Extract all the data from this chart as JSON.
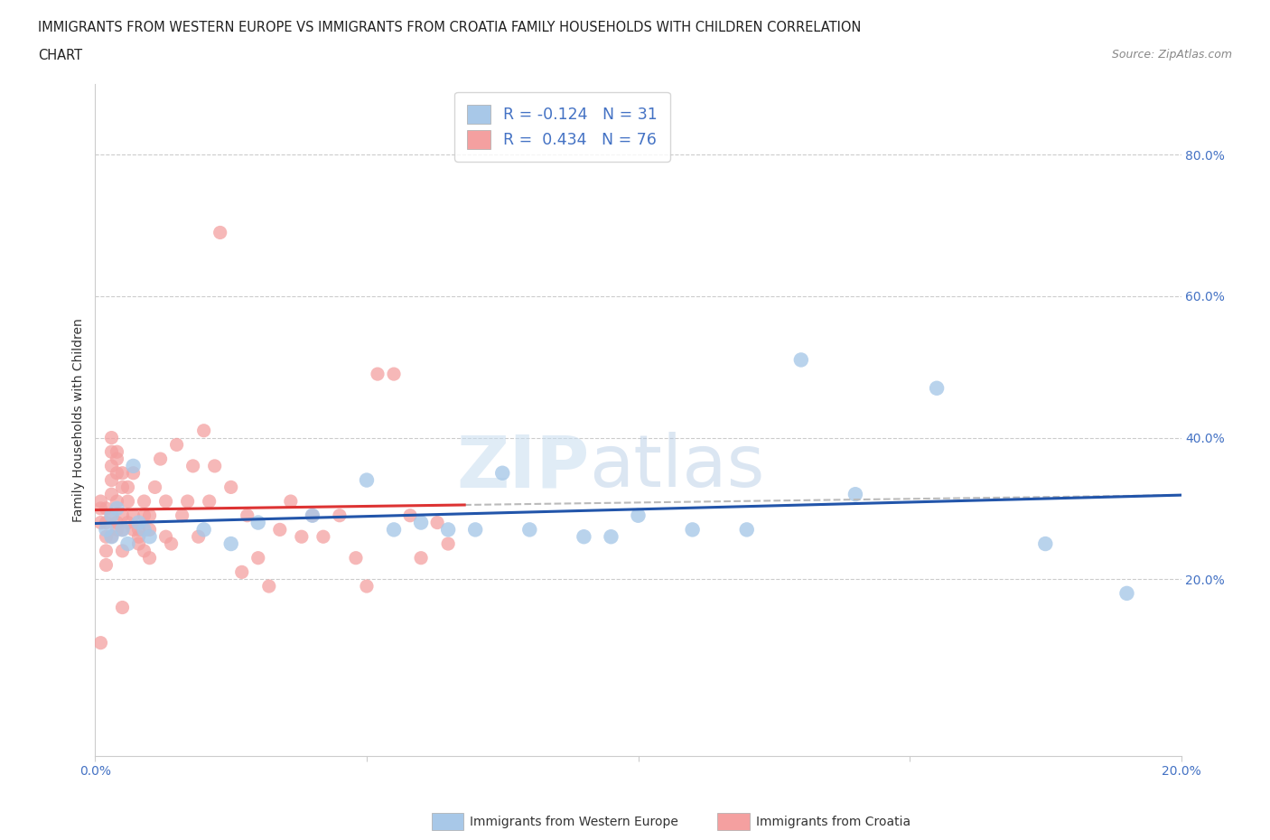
{
  "title_line1": "IMMIGRANTS FROM WESTERN EUROPE VS IMMIGRANTS FROM CROATIA FAMILY HOUSEHOLDS WITH CHILDREN CORRELATION",
  "title_line2": "CHART",
  "source_text": "Source: ZipAtlas.com",
  "ylabel": "Family Households with Children",
  "xlim": [
    0.0,
    0.2
  ],
  "ylim": [
    -0.05,
    0.9
  ],
  "xticks": [
    0.0,
    0.05,
    0.1,
    0.15,
    0.2
  ],
  "xticklabels": [
    "0.0%",
    "",
    "",
    "",
    "20.0%"
  ],
  "yticks_right": [
    0.2,
    0.4,
    0.6,
    0.8
  ],
  "ytick_right_labels": [
    "20.0%",
    "40.0%",
    "60.0%",
    "80.0%"
  ],
  "color_blue": "#a8c8e8",
  "color_pink": "#f4a0a0",
  "color_blue_line": "#2255aa",
  "color_pink_line": "#dd3333",
  "color_dashed_line": "#bbbbbb",
  "R_blue": -0.124,
  "N_blue": 31,
  "R_pink": 0.434,
  "N_pink": 76,
  "legend_label_blue": "Immigrants from Western Europe",
  "legend_label_pink": "Immigrants from Croatia",
  "blue_scatter_x": [
    0.002,
    0.003,
    0.003,
    0.004,
    0.005,
    0.006,
    0.007,
    0.008,
    0.009,
    0.01,
    0.02,
    0.025,
    0.03,
    0.04,
    0.05,
    0.055,
    0.06,
    0.065,
    0.07,
    0.075,
    0.08,
    0.09,
    0.095,
    0.1,
    0.11,
    0.12,
    0.13,
    0.14,
    0.155,
    0.175,
    0.19
  ],
  "blue_scatter_y": [
    0.27,
    0.29,
    0.26,
    0.3,
    0.27,
    0.25,
    0.36,
    0.28,
    0.27,
    0.26,
    0.27,
    0.25,
    0.28,
    0.29,
    0.34,
    0.27,
    0.28,
    0.27,
    0.27,
    0.35,
    0.27,
    0.26,
    0.26,
    0.29,
    0.27,
    0.27,
    0.51,
    0.32,
    0.47,
    0.25,
    0.18
  ],
  "pink_scatter_x": [
    0.001,
    0.001,
    0.001,
    0.002,
    0.002,
    0.002,
    0.002,
    0.003,
    0.003,
    0.003,
    0.003,
    0.003,
    0.004,
    0.004,
    0.004,
    0.004,
    0.004,
    0.005,
    0.005,
    0.005,
    0.005,
    0.005,
    0.006,
    0.006,
    0.006,
    0.007,
    0.007,
    0.007,
    0.008,
    0.008,
    0.008,
    0.009,
    0.009,
    0.009,
    0.01,
    0.01,
    0.01,
    0.011,
    0.012,
    0.013,
    0.013,
    0.014,
    0.015,
    0.016,
    0.017,
    0.018,
    0.019,
    0.02,
    0.021,
    0.022,
    0.023,
    0.025,
    0.027,
    0.028,
    0.03,
    0.032,
    0.034,
    0.036,
    0.038,
    0.04,
    0.042,
    0.045,
    0.048,
    0.05,
    0.052,
    0.055,
    0.058,
    0.06,
    0.063,
    0.065,
    0.001,
    0.002,
    0.003,
    0.003,
    0.004,
    0.005
  ],
  "pink_scatter_y": [
    0.31,
    0.3,
    0.11,
    0.26,
    0.28,
    0.24,
    0.22,
    0.38,
    0.36,
    0.4,
    0.29,
    0.26,
    0.37,
    0.38,
    0.31,
    0.35,
    0.28,
    0.35,
    0.33,
    0.29,
    0.27,
    0.24,
    0.31,
    0.33,
    0.28,
    0.35,
    0.29,
    0.27,
    0.27,
    0.26,
    0.25,
    0.31,
    0.29,
    0.24,
    0.27,
    0.23,
    0.29,
    0.33,
    0.37,
    0.31,
    0.26,
    0.25,
    0.39,
    0.29,
    0.31,
    0.36,
    0.26,
    0.41,
    0.31,
    0.36,
    0.69,
    0.33,
    0.21,
    0.29,
    0.23,
    0.19,
    0.27,
    0.31,
    0.26,
    0.29,
    0.26,
    0.29,
    0.23,
    0.19,
    0.49,
    0.49,
    0.29,
    0.23,
    0.28,
    0.25,
    0.28,
    0.3,
    0.32,
    0.34,
    0.27,
    0.16
  ]
}
